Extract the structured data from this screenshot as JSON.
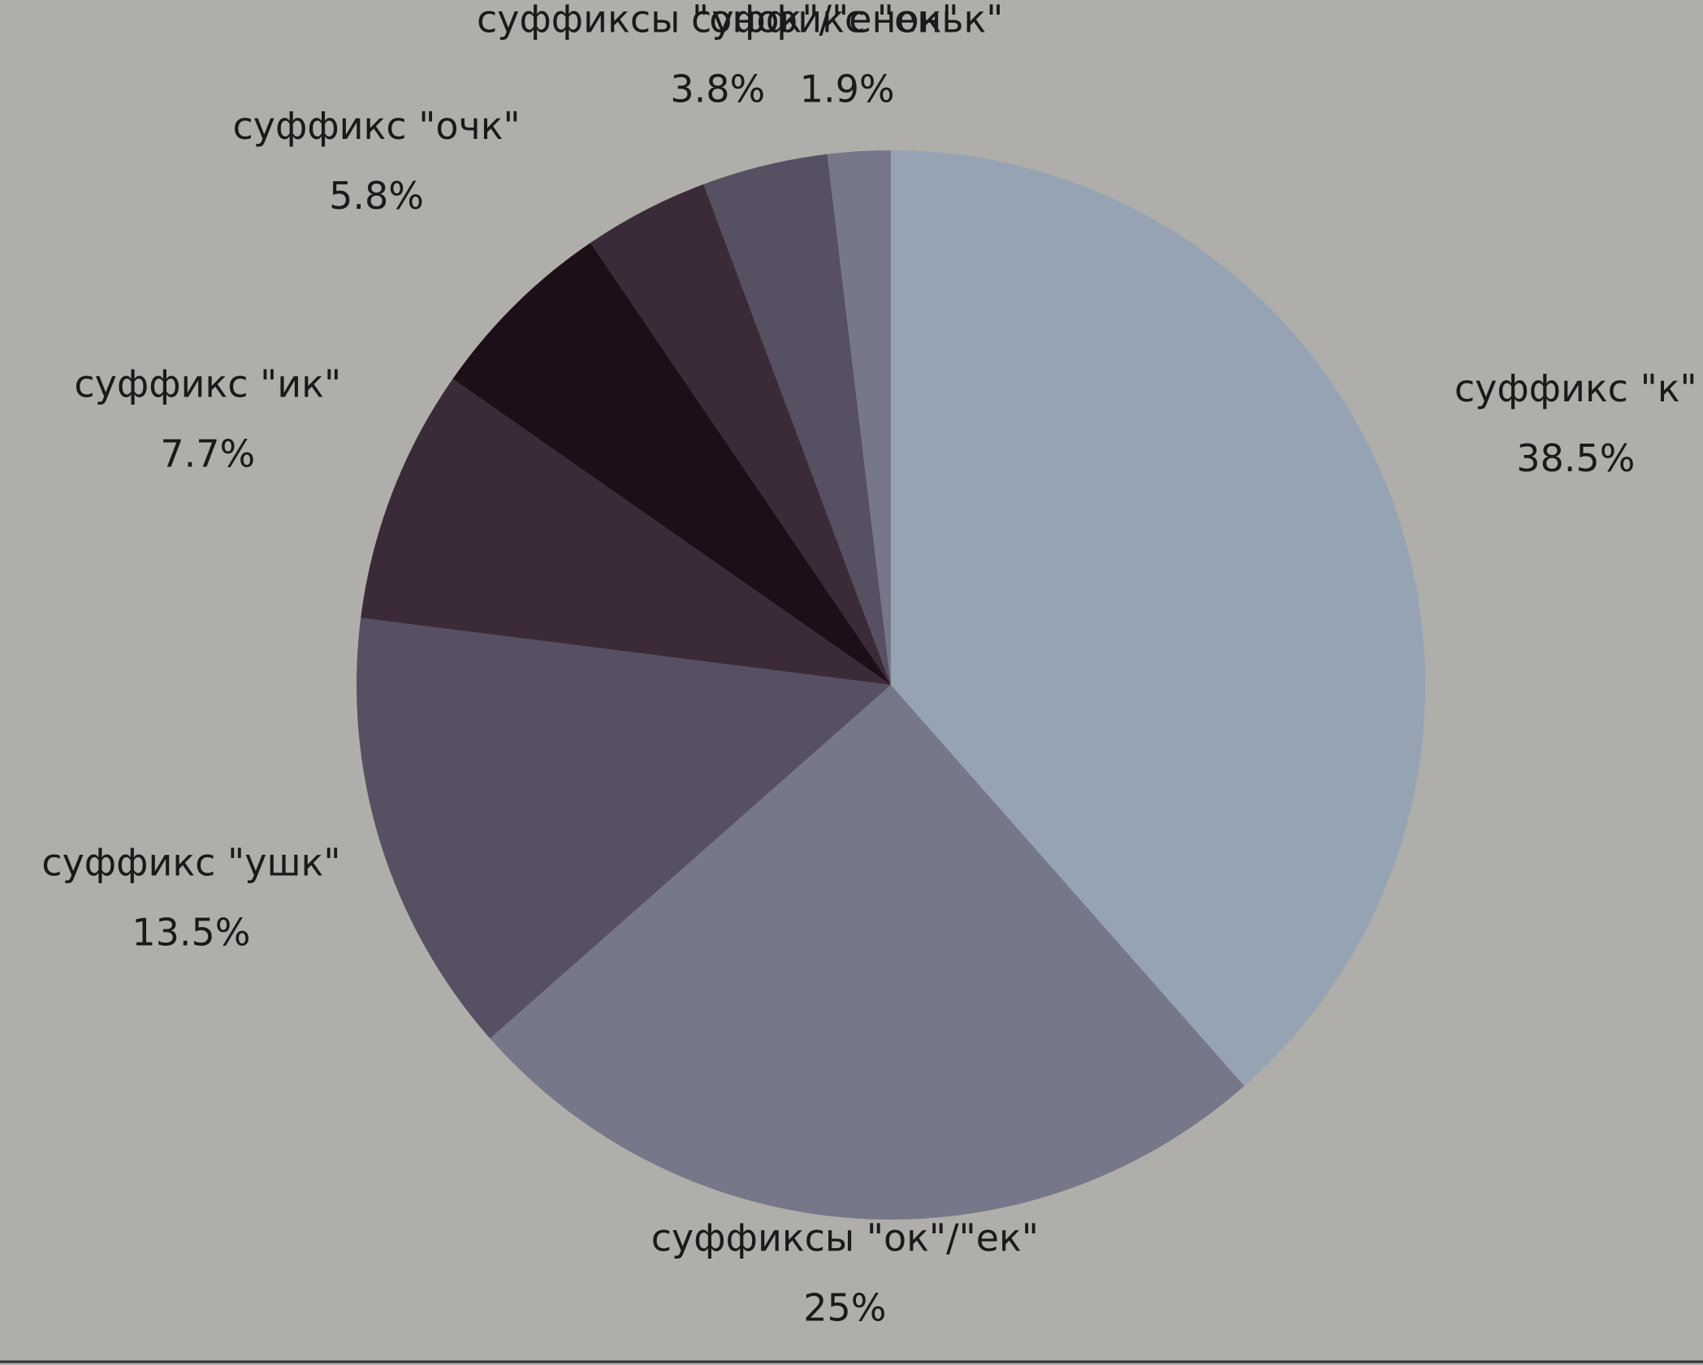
{
  "chart_data": {
    "type": "pie",
    "categories": [
      "суффикс \"к\"",
      "суффиксы \"ок\"/\"ек\"",
      "суффикс \"ушк\"",
      "суффикс \"ик\"",
      "суффикс \"очк\"",
      null,
      "суффиксы \"онок\"/\"енок\"",
      "суффикс \"еньк\""
    ],
    "values": [
      38.5,
      25,
      13.5,
      7.7,
      5.8,
      3.8,
      3.8,
      1.9
    ],
    "value_labels": [
      "38.5%",
      "25%",
      "13.5%",
      "7.7%",
      "5.8%",
      null,
      "3.8%",
      "1.9%"
    ],
    "colors": [
      "#96a3b2",
      "#767889",
      "#575062",
      "#3b2b39",
      "#1d0e17",
      "#3b2b39",
      "#575062",
      "#767889"
    ]
  }
}
